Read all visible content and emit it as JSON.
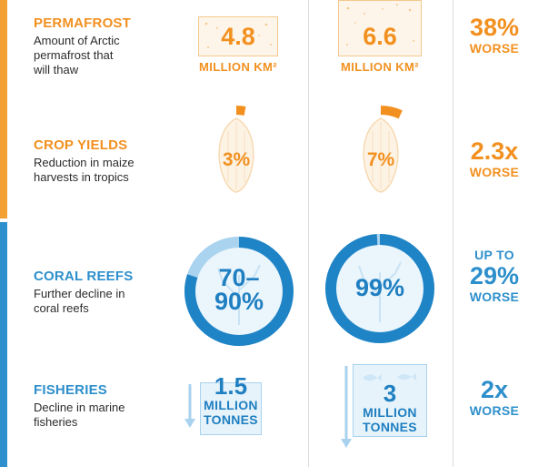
{
  "rows": {
    "permafrost": {
      "title": "PERMAFROST",
      "desc_lines": [
        "Amount of Arctic",
        "permafrost that",
        "will thaw"
      ],
      "col1_value": "4.8",
      "col1_unit": "MILLION KM²",
      "col2_value": "6.6",
      "col2_unit": "MILLION KM²",
      "ratio_value": "38%",
      "ratio_word": "WORSE"
    },
    "crop": {
      "title": "CROP YIELDS",
      "desc_lines": [
        "Reduction in maize",
        "harvests in tropics"
      ],
      "col1_value": "3%",
      "col1_fraction": 0.03,
      "col2_value": "7%",
      "col2_fraction": 0.07,
      "ratio_value": "2.3x",
      "ratio_word": "WORSE"
    },
    "coral": {
      "title": "CORAL REEFS",
      "desc_lines": [
        "Further decline in",
        "coral reefs"
      ],
      "col1_value_lines": [
        "70–",
        "90%"
      ],
      "col1_fraction": 0.8,
      "col2_value": "99%",
      "col2_fraction": 0.99,
      "ratio_prefix": "UP TO",
      "ratio_value": "29%",
      "ratio_word": "WORSE"
    },
    "fisheries": {
      "title": "FISHERIES",
      "desc_lines": [
        "Decline in marine",
        "fisheries"
      ],
      "col1_value": "1.5",
      "col1_unit_lines": [
        "MILLION",
        "TONNES"
      ],
      "col2_value": "3",
      "col2_unit_lines": [
        "MILLION",
        "TONNES"
      ],
      "ratio_value": "2x",
      "ratio_word": "WORSE"
    }
  },
  "colors": {
    "orange": "#f2901f",
    "blue": "#2d8fcb",
    "light_orange": "#fdf5e9",
    "light_blue": "#e6f3fb"
  },
  "icons": {
    "crop": "corn-cob-icon",
    "coral": "coral-icon",
    "fisheries": "fish-icon",
    "decline": "down-arrow-icon"
  }
}
